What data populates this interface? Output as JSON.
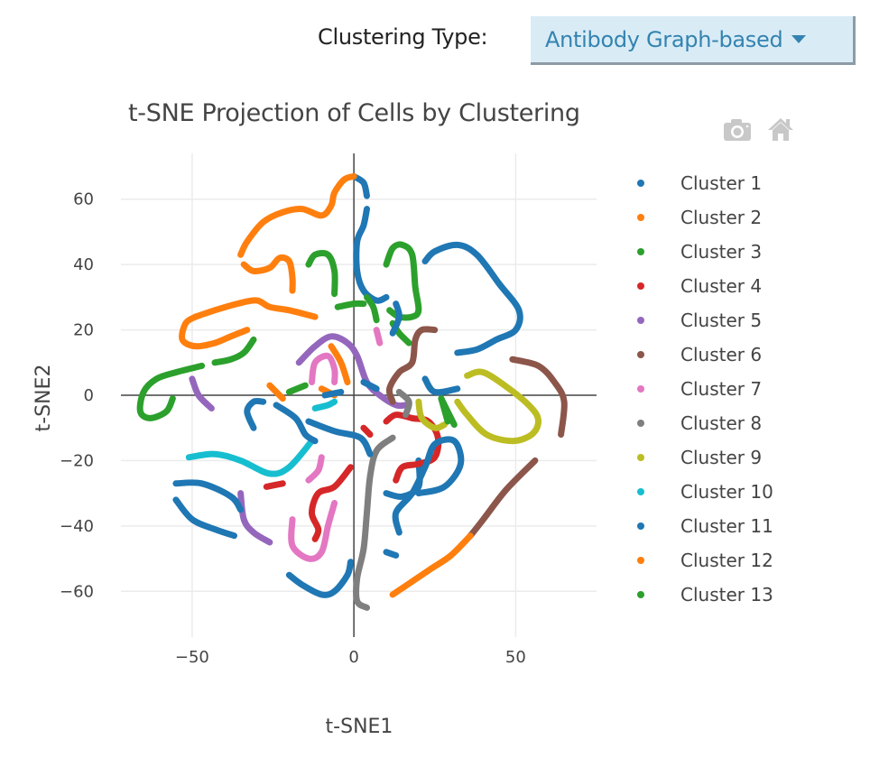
{
  "controls": {
    "clustering_label": "Clustering Type:",
    "clustering_value": "Antibody Graph-based"
  },
  "modebar": {
    "icons": [
      "camera-icon",
      "home-icon"
    ]
  },
  "chart_data": {
    "type": "scatter",
    "title": "t-SNE Projection of Cells by Clustering",
    "xlabel": "t-SNE1",
    "ylabel": "t-SNE2",
    "xlim": [
      -72,
      75
    ],
    "ylim": [
      -74,
      74
    ],
    "xticks": [
      -50,
      0,
      50
    ],
    "xtick_labels": [
      "−50",
      "0",
      "50"
    ],
    "yticks": [
      60,
      40,
      20,
      0,
      -20,
      -40,
      -60
    ],
    "ytick_labels": [
      "60",
      "40",
      "20",
      "0",
      "−20",
      "−40",
      "−60"
    ],
    "grid": true,
    "zero_lines": true,
    "legend_position": "right",
    "series": [
      {
        "name": "Cluster 1",
        "color": "#1f77b4",
        "paths": [
          [
            [
              0,
              67
            ],
            [
              3,
              65
            ],
            [
              4,
              61
            ]
          ],
          [
            [
              4,
              57
            ],
            [
              3,
              52
            ],
            [
              1,
              47
            ],
            [
              1,
              38
            ],
            [
              3,
              32
            ],
            [
              7,
              29
            ],
            [
              10,
              30
            ]
          ],
          [
            [
              20,
              -20
            ],
            [
              20,
              -28
            ],
            [
              15,
              -31
            ],
            [
              10,
              -30
            ]
          ]
        ]
      },
      {
        "name": "Cluster 2",
        "color": "#ff7f0e",
        "paths": [
          [
            [
              0,
              67
            ],
            [
              -3,
              66
            ],
            [
              -6,
              62
            ],
            [
              -7,
              58
            ],
            [
              -10,
              55
            ],
            [
              -16,
              57
            ],
            [
              -22,
              56
            ],
            [
              -28,
              53
            ],
            [
              -33,
              47
            ],
            [
              -35,
              43
            ]
          ],
          [
            [
              -34,
              40
            ],
            [
              -31,
              38
            ],
            [
              -26,
              39
            ],
            [
              -23,
              42
            ],
            [
              -20,
              41
            ],
            [
              -19,
              36
            ],
            [
              -19,
              32
            ]
          ],
          [
            [
              -12,
              24
            ],
            [
              -20,
              26
            ],
            [
              -26,
              27
            ],
            [
              -30,
              29
            ],
            [
              -36,
              28
            ],
            [
              -43,
              26
            ],
            [
              -49,
              24
            ]
          ],
          [
            [
              -49,
              24
            ],
            [
              -52,
              22
            ],
            [
              -53,
              17
            ],
            [
              -49,
              15
            ],
            [
              -43,
              16
            ],
            [
              -38,
              18
            ],
            [
              -33,
              20
            ]
          ],
          [
            [
              -7,
              15
            ],
            [
              -4,
              10
            ],
            [
              -2,
              4
            ]
          ],
          [
            [
              -10,
              2
            ],
            [
              -6,
              0
            ]
          ],
          [
            [
              -22,
              -1
            ],
            [
              -26,
              3
            ]
          ]
        ]
      },
      {
        "name": "Cluster 3",
        "color": "#2ca02c",
        "paths": [
          [
            [
              -14,
              40
            ],
            [
              -12,
              43
            ],
            [
              -8,
              43
            ],
            [
              -6,
              38
            ],
            [
              -6,
              31
            ]
          ],
          [
            [
              -5,
              27
            ],
            [
              0,
              28
            ],
            [
              3,
              28
            ]
          ],
          [
            [
              10,
              40
            ],
            [
              12,
              45
            ],
            [
              15,
              46
            ],
            [
              18,
              43
            ],
            [
              19,
              33
            ],
            [
              20,
              26
            ],
            [
              18,
              24
            ],
            [
              14,
              24
            ],
            [
              11,
              26
            ]
          ],
          [
            [
              4,
              30
            ],
            [
              6,
              27
            ],
            [
              7,
              23
            ]
          ],
          [
            [
              12,
              22
            ],
            [
              14,
              19
            ],
            [
              17,
              16
            ]
          ],
          [
            [
              -31,
              17
            ],
            [
              -34,
              13
            ],
            [
              -38,
              11
            ],
            [
              -43,
              10
            ]
          ],
          [
            [
              -47,
              9
            ],
            [
              -55,
              7
            ],
            [
              -61,
              5
            ],
            [
              -65,
              1
            ],
            [
              -66,
              -5
            ],
            [
              -63,
              -7
            ],
            [
              -58,
              -5
            ],
            [
              -56,
              -1
            ]
          ],
          [
            [
              -15,
              3
            ],
            [
              -20,
              1
            ]
          ],
          [
            [
              27,
              -1
            ],
            [
              31,
              -9
            ]
          ]
        ]
      },
      {
        "name": "Cluster 4",
        "color": "#d62728",
        "paths": [
          [
            [
              10,
              -8
            ],
            [
              13,
              -6
            ],
            [
              18,
              -7
            ],
            [
              23,
              -8
            ],
            [
              26,
              -13
            ],
            [
              25,
              -19
            ],
            [
              20,
              -21
            ],
            [
              15,
              -22
            ],
            [
              13,
              -26
            ]
          ],
          [
            [
              -1,
              -22
            ],
            [
              -6,
              -28
            ],
            [
              -11,
              -30
            ],
            [
              -13,
              -36
            ],
            [
              -11,
              -41
            ],
            [
              -12,
              -44
            ]
          ],
          [
            [
              -27,
              -28
            ],
            [
              -22,
              -27
            ]
          ],
          [
            [
              3,
              -10
            ],
            [
              5,
              -12
            ]
          ]
        ]
      },
      {
        "name": "Cluster 5",
        "color": "#9467bd",
        "paths": [
          [
            [
              -17,
              10
            ],
            [
              -12,
              15
            ],
            [
              -7,
              18
            ],
            [
              -2,
              16
            ],
            [
              1,
              12
            ],
            [
              4,
              4
            ],
            [
              8,
              0
            ],
            [
              13,
              -3
            ],
            [
              16,
              -3
            ]
          ],
          [
            [
              -44,
              -4
            ],
            [
              -48,
              0
            ],
            [
              -50,
              5
            ]
          ],
          [
            [
              -35,
              -30
            ],
            [
              -34,
              -38
            ],
            [
              -31,
              -42
            ],
            [
              -26,
              -45
            ]
          ]
        ]
      },
      {
        "name": "Cluster 6",
        "color": "#8c564b",
        "paths": [
          [
            [
              25,
              20
            ],
            [
              21,
              20
            ],
            [
              19,
              17
            ],
            [
              18,
              10
            ],
            [
              14,
              7
            ],
            [
              11,
              2
            ],
            [
              12,
              -2
            ]
          ],
          [
            [
              49,
              11
            ],
            [
              57,
              9
            ],
            [
              62,
              4
            ],
            [
              65,
              -2
            ],
            [
              64,
              -12
            ]
          ],
          [
            [
              56,
              -20
            ],
            [
              47,
              -29
            ],
            [
              40,
              -38
            ],
            [
              36,
              -43
            ]
          ]
        ]
      },
      {
        "name": "Cluster 7",
        "color": "#e377c2",
        "paths": [
          [
            [
              -13,
              4
            ],
            [
              -12,
              10
            ],
            [
              -8,
              12
            ],
            [
              -6,
              8
            ],
            [
              -6,
              4
            ]
          ],
          [
            [
              7,
              20
            ],
            [
              8,
              16
            ]
          ],
          [
            [
              -10,
              -19
            ],
            [
              -11,
              -23
            ],
            [
              -14,
              -26
            ]
          ],
          [
            [
              -19,
              -38
            ],
            [
              -19,
              -46
            ],
            [
              -14,
              -50
            ],
            [
              -10,
              -48
            ],
            [
              -8,
              -40
            ],
            [
              -6,
              -33
            ]
          ]
        ]
      },
      {
        "name": "Cluster 8",
        "color": "#7f7f7f",
        "paths": [
          [
            [
              12,
              -13
            ],
            [
              7,
              -17
            ],
            [
              5,
              -25
            ],
            [
              4,
              -36
            ],
            [
              3,
              -47
            ],
            [
              1,
              -56
            ],
            [
              1,
              -63
            ],
            [
              4,
              -65
            ]
          ],
          [
            [
              14,
              1
            ],
            [
              17,
              -2
            ],
            [
              16,
              -6
            ]
          ]
        ]
      },
      {
        "name": "Cluster 9",
        "color": "#bcbd22",
        "paths": [
          [
            [
              20,
              -2
            ],
            [
              21,
              -7
            ],
            [
              25,
              -10
            ],
            [
              28,
              -9
            ]
          ],
          [
            [
              35,
              6
            ],
            [
              40,
              7
            ],
            [
              48,
              2
            ],
            [
              55,
              -4
            ],
            [
              57,
              -8
            ],
            [
              55,
              -12
            ],
            [
              49,
              -14
            ],
            [
              41,
              -12
            ],
            [
              35,
              -6
            ],
            [
              32,
              -2
            ]
          ]
        ]
      },
      {
        "name": "Cluster 10",
        "color": "#17becf",
        "paths": [
          [
            [
              -51,
              -19
            ],
            [
              -43,
              -18
            ],
            [
              -35,
              -20
            ],
            [
              -26,
              -24
            ],
            [
              -20,
              -22
            ],
            [
              -13,
              -14
            ]
          ],
          [
            [
              -12,
              -4
            ],
            [
              -8,
              -3
            ],
            [
              -6,
              -2
            ]
          ]
        ]
      },
      {
        "name": "Cluster 11",
        "color": "#1f77b4",
        "paths": [
          [
            [
              12,
              19
            ],
            [
              14,
              24
            ],
            [
              13,
              28
            ]
          ],
          [
            [
              22,
              41
            ],
            [
              25,
              44
            ],
            [
              32,
              46
            ],
            [
              38,
              43
            ],
            [
              45,
              34
            ],
            [
              51,
              26
            ],
            [
              50,
              20
            ],
            [
              44,
              17
            ],
            [
              38,
              14
            ],
            [
              32,
              13
            ]
          ],
          [
            [
              -31,
              -10
            ],
            [
              -33,
              -5
            ],
            [
              -31,
              -2
            ],
            [
              -28,
              -2
            ]
          ],
          [
            [
              -24,
              -3
            ],
            [
              -18,
              -7
            ],
            [
              -15,
              -12
            ],
            [
              -12,
              -14
            ]
          ],
          [
            [
              -14,
              -8
            ],
            [
              -6,
              -11
            ],
            [
              2,
              -13
            ],
            [
              5,
              -18
            ]
          ],
          [
            [
              -55,
              -27
            ],
            [
              -47,
              -27
            ],
            [
              -38,
              -31
            ],
            [
              -35,
              -35
            ]
          ],
          [
            [
              -55,
              -32
            ],
            [
              -50,
              -38
            ],
            [
              -43,
              -41
            ],
            [
              -37,
              -43
            ]
          ],
          [
            [
              -20,
              -55
            ],
            [
              -16,
              -58
            ],
            [
              -10,
              -61
            ],
            [
              -6,
              -60
            ],
            [
              -2,
              -55
            ],
            [
              -1,
              -51
            ]
          ],
          [
            [
              32,
              2
            ],
            [
              25,
              1
            ],
            [
              22,
              5
            ]
          ],
          [
            [
              20,
              -30
            ],
            [
              28,
              -28
            ],
            [
              33,
              -21
            ],
            [
              31,
              -14
            ],
            [
              25,
              -15
            ],
            [
              22,
              -22
            ],
            [
              18,
              -30
            ],
            [
              13,
              -36
            ],
            [
              14,
              -42
            ]
          ],
          [
            [
              10,
              -48
            ],
            [
              13,
              -49
            ]
          ],
          [
            [
              7,
              2
            ],
            [
              3,
              4
            ]
          ],
          [
            [
              -9,
              0
            ],
            [
              -4,
              1
            ]
          ]
        ]
      },
      {
        "name": "Cluster 12",
        "color": "#ff7f0e",
        "paths": [
          [
            [
              12,
              -61
            ],
            [
              18,
              -57
            ],
            [
              24,
              -53
            ],
            [
              30,
              -49
            ],
            [
              36,
              -43
            ]
          ]
        ]
      },
      {
        "name": "Cluster 13",
        "color": "#2ca02c",
        "paths": [
          [
            [
              27,
              -1
            ],
            [
              29,
              -8
            ]
          ]
        ]
      }
    ]
  }
}
